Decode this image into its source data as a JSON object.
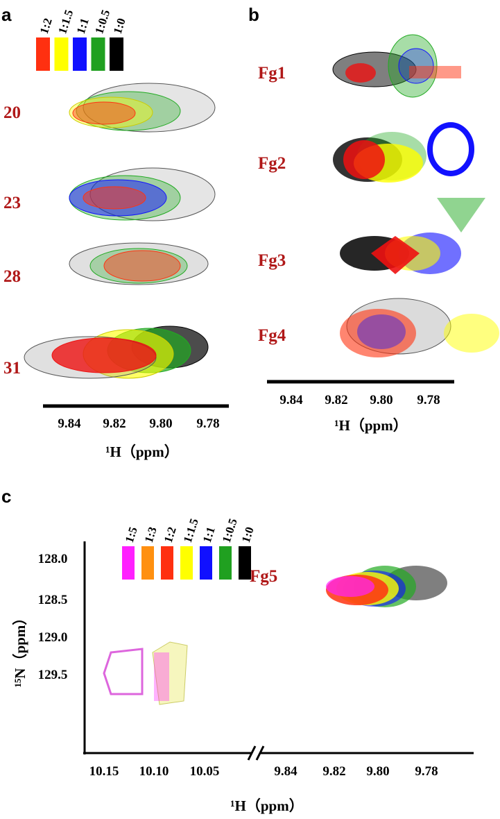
{
  "panels": [
    {
      "letter": "a",
      "legend": [
        {
          "label": "1:2",
          "color": "#ff3010"
        },
        {
          "label": "1:1.5",
          "color": "#ffff00"
        },
        {
          "label": "1:1",
          "color": "#1010ff"
        },
        {
          "label": "1:0.5",
          "color": "#20a020"
        },
        {
          "label": "1:0",
          "color": "#000000"
        }
      ],
      "peaks": [
        "20",
        "23",
        "28",
        "31"
      ],
      "x_ticks": [
        "9.84",
        "9.82",
        "9.80",
        "9.78"
      ],
      "x_label": "¹H（ppm）"
    },
    {
      "letter": "b",
      "peaks": [
        "Fg1",
        "Fg2",
        "Fg3",
        "Fg4"
      ],
      "x_ticks": [
        "9.84",
        "9.82",
        "9.80",
        "9.78"
      ],
      "x_label": "¹H（ppm）"
    },
    {
      "letter": "c",
      "legend": [
        {
          "label": "1:5",
          "color": "#ff20ff"
        },
        {
          "label": "1:3",
          "color": "#ff9010"
        },
        {
          "label": "1:2",
          "color": "#ff3010"
        },
        {
          "label": "1:1.5",
          "color": "#ffff00"
        },
        {
          "label": "1:1",
          "color": "#1010ff"
        },
        {
          "label": "1:0.5",
          "color": "#20a020"
        },
        {
          "label": "1:0",
          "color": "#000000"
        }
      ],
      "peaks": [
        "Fg5"
      ],
      "y_ticks": [
        "128.0",
        "128.5",
        "129.0",
        "129.5"
      ],
      "x_ticks": [
        "10.15",
        "10.10",
        "10.05",
        "9.84",
        "9.82",
        "9.80",
        "9.78"
      ],
      "y_label": "¹⁵N（ppm）",
      "x_label": "¹H（ppm）"
    }
  ]
}
